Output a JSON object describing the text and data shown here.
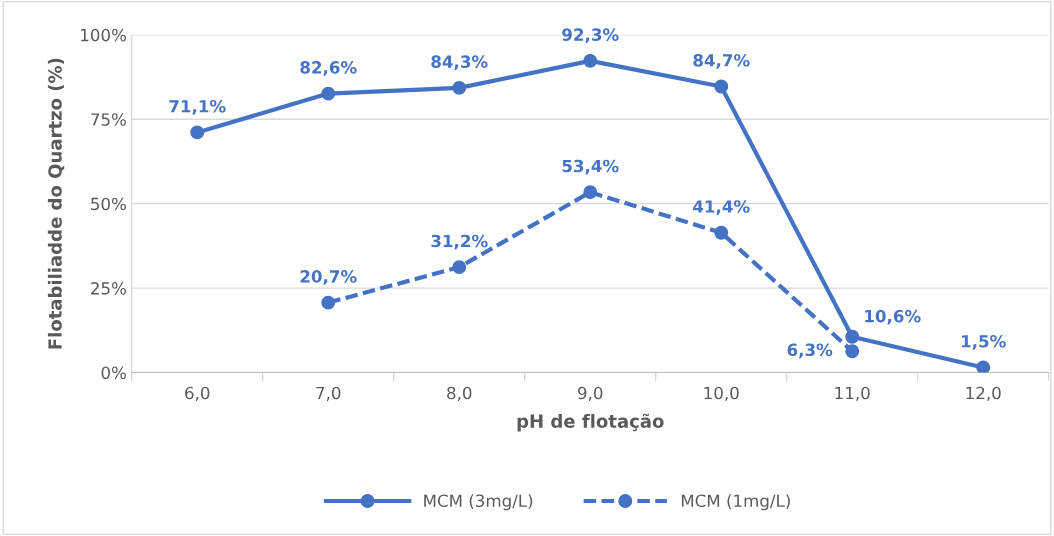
{
  "chart_data": {
    "type": "line",
    "xlabel": "pH de flotação",
    "ylabel": "Flotabiliadde do Quartzo (%)",
    "categories": [
      "6,0",
      "7,0",
      "8,0",
      "9,0",
      "10,0",
      "11,0",
      "12,0"
    ],
    "series": [
      {
        "name": "MCM (3mg/L)",
        "color": "#4472c4",
        "line_style": "solid",
        "values": [
          71.1,
          82.6,
          84.3,
          92.3,
          84.7,
          10.6,
          1.5
        ],
        "value_labels": [
          "71,1%",
          "82,6%",
          "84,3%",
          "92,3%",
          "84,7%",
          "10,6%",
          "1,5%"
        ]
      },
      {
        "name": "MCM (1mg/L)",
        "color": "#4472c4",
        "line_style": "dashed",
        "values": [
          null,
          20.7,
          31.2,
          53.4,
          41.4,
          6.3,
          null
        ],
        "value_labels": [
          null,
          "20,7%",
          "31,2%",
          "53,4%",
          "41,4%",
          "6,3%",
          null
        ]
      }
    ],
    "ylim": [
      0,
      100
    ],
    "yticks": [
      {
        "value": 0,
        "label": "0%"
      },
      {
        "value": 25,
        "label": "25%"
      },
      {
        "value": 50,
        "label": "50%"
      },
      {
        "value": 75,
        "label": "75%"
      },
      {
        "value": 100,
        "label": "100%"
      }
    ],
    "grid": "y",
    "legend": "bottom",
    "marker": "circle"
  }
}
